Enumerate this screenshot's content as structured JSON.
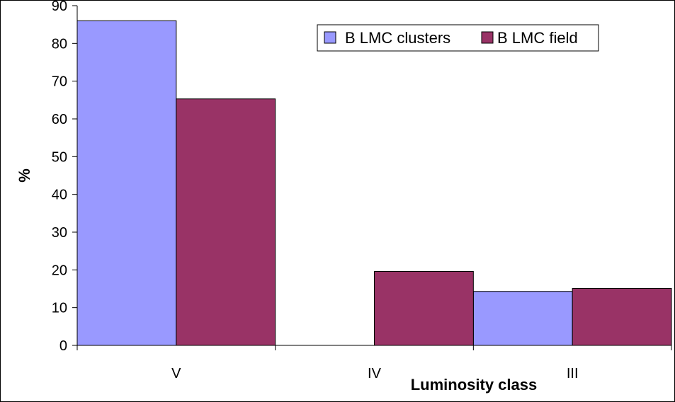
{
  "chart_data": {
    "type": "bar",
    "categories": [
      "V",
      "IV",
      "III"
    ],
    "series": [
      {
        "name": "B LMC clusters",
        "values": [
          86,
          0,
          14.3
        ],
        "color": "#9999ff"
      },
      {
        "name": "B LMC field",
        "values": [
          65.3,
          19.6,
          15.1
        ],
        "color": "#993366"
      }
    ],
    "title": "",
    "xlabel": "Luminosity class",
    "ylabel": "%",
    "ylim": [
      0,
      90
    ],
    "yticks": [
      0,
      10,
      20,
      30,
      40,
      50,
      60,
      70,
      80,
      90
    ],
    "grid": false,
    "legend_position": "top-right"
  }
}
